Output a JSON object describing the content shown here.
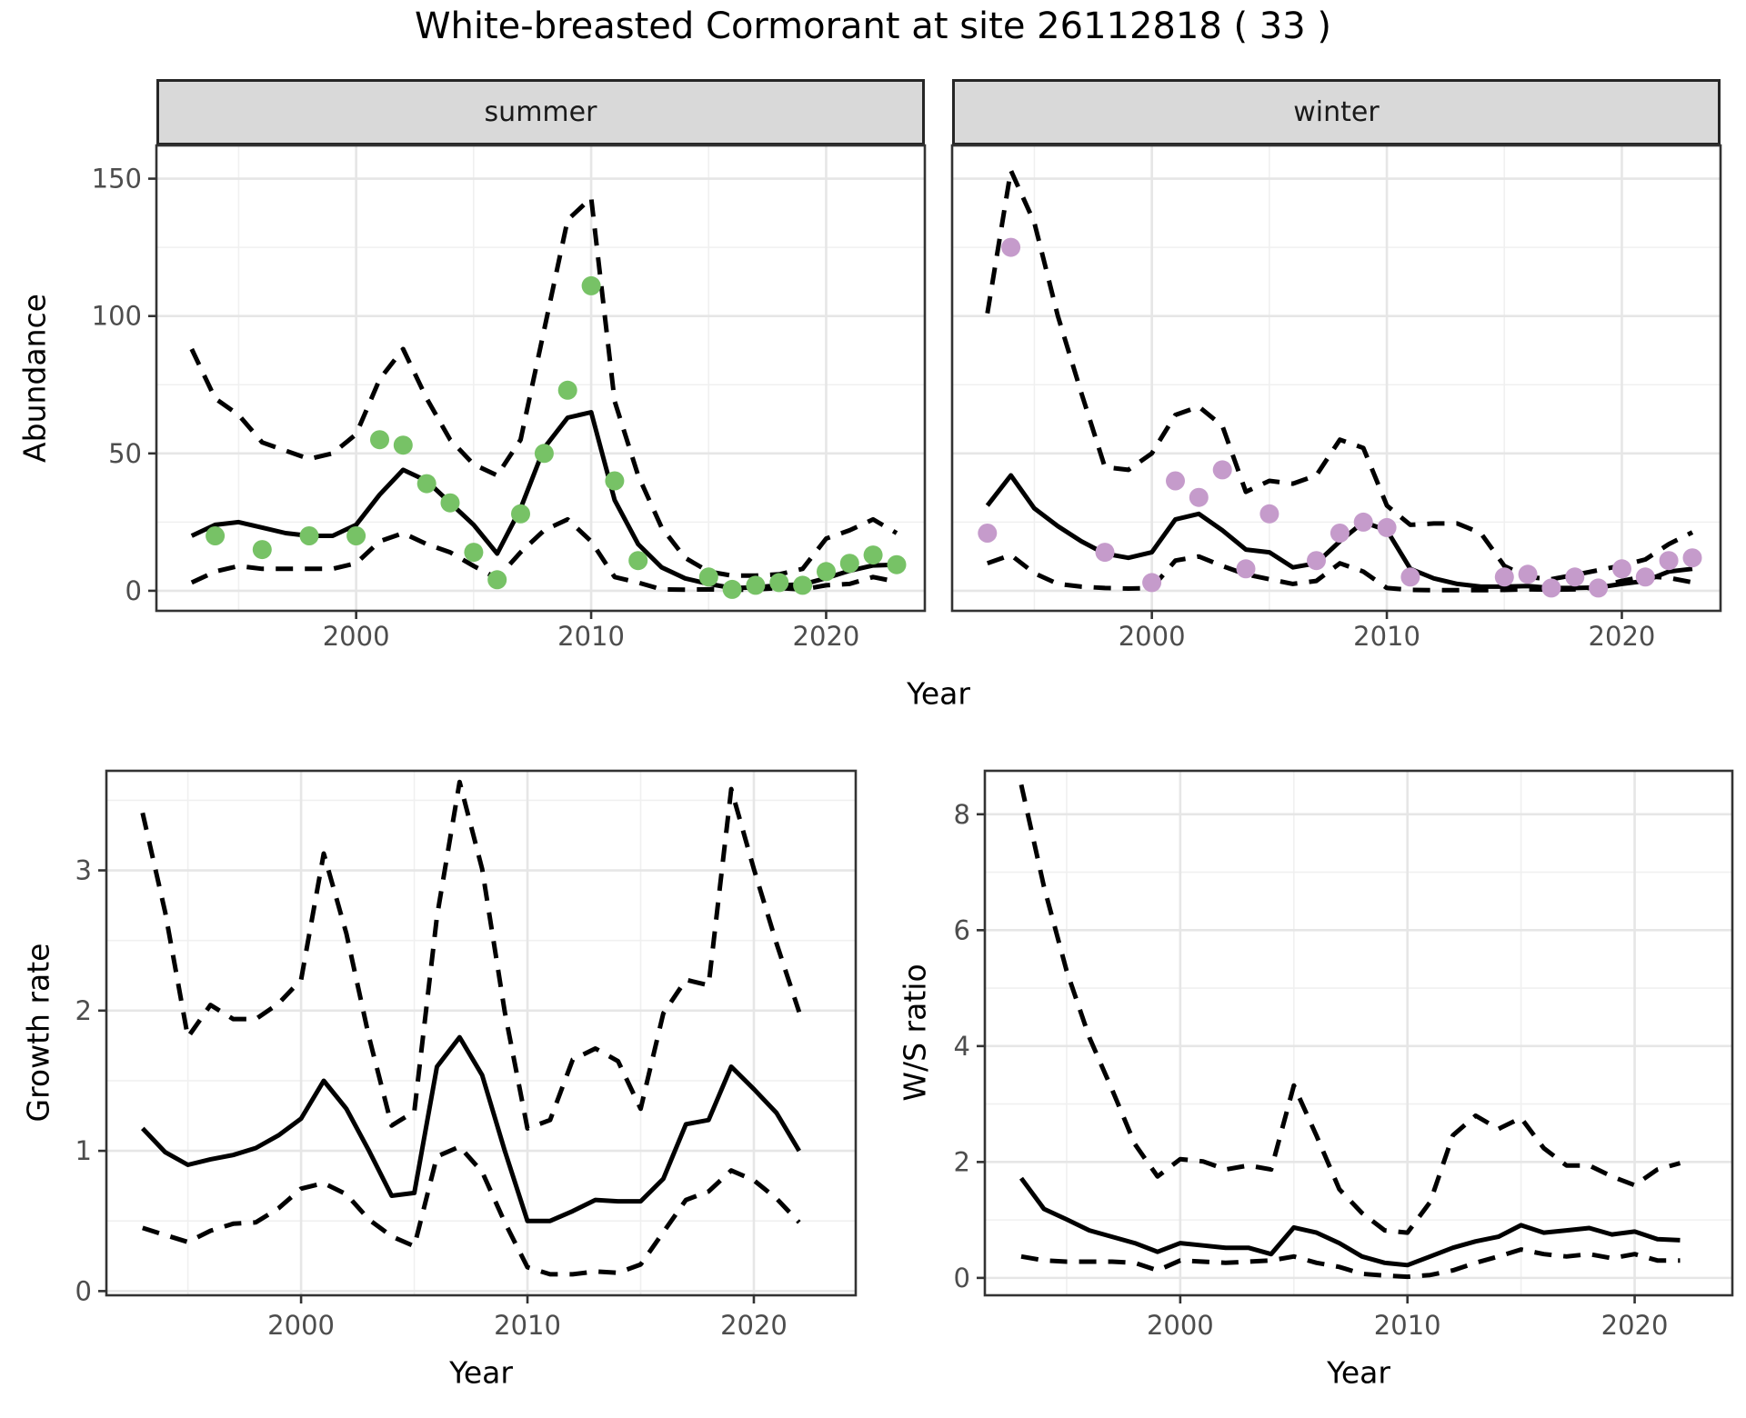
{
  "title": "White-breasted Cormorant at site 26112818 ( 33 )",
  "chart_data": [
    {
      "id": "abundance-summer",
      "type": "line",
      "facet": "summer",
      "ylabel": "Abundance",
      "xlabel": "Year",
      "xlim": [
        1991.5,
        2024.2
      ],
      "ylim": [
        -7.3,
        162.1
      ],
      "xticks": [
        2000,
        2010,
        2020
      ],
      "yticks": [
        0,
        50,
        100,
        150
      ],
      "grid": true,
      "legend": "none",
      "years": [
        1993,
        1994,
        1995,
        1996,
        1997,
        1998,
        1999,
        2000,
        2001,
        2002,
        2003,
        2004,
        2005,
        2006,
        2007,
        2008,
        2009,
        2010,
        2011,
        2012,
        2013,
        2014,
        2015,
        2016,
        2017,
        2018,
        2019,
        2020,
        2021,
        2022,
        2023
      ],
      "series": [
        {
          "name": "mean",
          "style": "solid",
          "y": [
            20,
            24,
            25,
            23,
            21,
            20,
            20,
            24,
            35,
            44,
            40,
            32,
            24,
            13.5,
            30,
            52,
            63,
            65,
            33,
            17,
            8.5,
            4.5,
            2.5,
            1,
            1.2,
            2,
            2.3,
            4.6,
            7.3,
            9.2,
            9.5
          ]
        },
        {
          "name": "upper_ci",
          "style": "dashed",
          "y": [
            88,
            70,
            64,
            54,
            51,
            48,
            50,
            57,
            77,
            88,
            70,
            55,
            46,
            42,
            55,
            95,
            135,
            143,
            69,
            42,
            23,
            12,
            7,
            5.5,
            5.5,
            6,
            8,
            19,
            22,
            26,
            21
          ]
        },
        {
          "name": "lower_ci",
          "style": "dashed",
          "y": [
            3,
            7,
            9,
            8,
            8,
            8,
            8,
            10,
            18,
            21,
            17,
            14,
            9,
            4.5,
            14,
            22,
            26,
            18,
            5,
            3,
            0.5,
            0.4,
            0.5,
            0.3,
            0.5,
            1,
            0.5,
            2,
            2.5,
            5,
            3.3
          ]
        }
      ],
      "points": {
        "name": "observed-counts",
        "color": "#77C266",
        "x": [
          1994,
          1996,
          1998,
          2000,
          2001,
          2002,
          2003,
          2004,
          2005,
          2006,
          2007,
          2008,
          2009,
          2010,
          2011,
          2012,
          2015,
          2016,
          2017,
          2018,
          2019,
          2020,
          2021,
          2022,
          2023
        ],
        "y": [
          20,
          15,
          20,
          20,
          55,
          53,
          39,
          32,
          14,
          4,
          28,
          50,
          73,
          111,
          40,
          11,
          5,
          0.5,
          2,
          3,
          2,
          7,
          10,
          13,
          9.5
        ]
      }
    },
    {
      "id": "abundance-winter",
      "type": "line",
      "facet": "winter",
      "ylabel": "Abundance",
      "xlabel": "Year",
      "xlim": [
        1991.5,
        2024.2
      ],
      "ylim": [
        -7.3,
        162.1
      ],
      "xticks": [
        2000,
        2010,
        2020
      ],
      "yticks": [
        0,
        50,
        100,
        150
      ],
      "grid": true,
      "legend": "none",
      "years": [
        1993,
        1994,
        1995,
        1996,
        1997,
        1998,
        1999,
        2000,
        2001,
        2002,
        2003,
        2004,
        2005,
        2006,
        2007,
        2008,
        2009,
        2010,
        2011,
        2012,
        2013,
        2014,
        2015,
        2016,
        2017,
        2018,
        2019,
        2020,
        2021,
        2022,
        2023
      ],
      "series": [
        {
          "name": "mean",
          "style": "solid",
          "y": [
            31,
            42,
            30,
            23.5,
            18,
            13.5,
            12,
            14,
            26,
            28,
            22,
            15,
            14,
            8.5,
            10,
            18,
            25,
            22,
            8,
            4.5,
            2.5,
            1.5,
            1.5,
            1.7,
            1,
            1,
            1.2,
            2.5,
            3.6,
            7,
            8
          ]
        },
        {
          "name": "upper_ci",
          "style": "dashed",
          "y": [
            101,
            153,
            134,
            100,
            72,
            45,
            44,
            50,
            64,
            67,
            60,
            36,
            40,
            39,
            42,
            55,
            52,
            31,
            24,
            24.5,
            24.5,
            21,
            9,
            5,
            4.2,
            5.8,
            7.5,
            9.2,
            11.4,
            17,
            21.3
          ]
        },
        {
          "name": "lower_ci",
          "style": "dashed",
          "y": [
            10,
            13,
            6.4,
            2.5,
            1.5,
            1,
            0.8,
            1,
            11,
            12.5,
            9,
            6,
            4.2,
            2.5,
            3.6,
            10,
            7,
            1,
            0.3,
            0.2,
            0.2,
            0.2,
            0.3,
            0.5,
            0.4,
            0.5,
            1.4,
            3.6,
            5.3,
            4.7,
            3.1
          ]
        }
      ],
      "points": {
        "name": "observed-counts",
        "color": "#C59BCB",
        "x": [
          1993,
          1994,
          1998,
          2000,
          2001,
          2002,
          2003,
          2004,
          2005,
          2007,
          2008,
          2009,
          2010,
          2011,
          2015,
          2016,
          2017,
          2018,
          2019,
          2020,
          2021,
          2022,
          2023
        ],
        "y": [
          21,
          125,
          14,
          3,
          40,
          34,
          44,
          8,
          28,
          11,
          21,
          25,
          23,
          5,
          5,
          6,
          1,
          5,
          1,
          8,
          5,
          11,
          12
        ]
      }
    },
    {
      "id": "growth-rate",
      "type": "line",
      "facet": "",
      "ylabel": "Growth rate",
      "xlabel": "Year",
      "xlim": [
        1991.4,
        2024.5
      ],
      "ylim": [
        -0.03,
        3.71
      ],
      "xticks": [
        2000,
        2010,
        2020
      ],
      "yticks": [
        0,
        1,
        2,
        3
      ],
      "grid": true,
      "legend": "none",
      "years": [
        1993,
        1994,
        1995,
        1996,
        1997,
        1998,
        1999,
        2000,
        2001,
        2002,
        2003,
        2004,
        2005,
        2006,
        2007,
        2008,
        2009,
        2010,
        2011,
        2012,
        2013,
        2014,
        2015,
        2016,
        2017,
        2018,
        2019,
        2020,
        2021,
        2022
      ],
      "series": [
        {
          "name": "mean",
          "style": "solid",
          "y": [
            1.16,
            0.99,
            0.9,
            0.94,
            0.97,
            1.02,
            1.11,
            1.23,
            1.5,
            1.3,
            1.0,
            0.68,
            0.7,
            1.6,
            1.81,
            1.54,
            1.0,
            0.5,
            0.5,
            0.57,
            0.65,
            0.64,
            0.64,
            0.8,
            1.19,
            1.22,
            1.6,
            1.44,
            1.27,
            1.0
          ]
        },
        {
          "name": "upper_ci",
          "style": "dashed",
          "y": [
            3.41,
            2.7,
            1.81,
            2.04,
            1.94,
            1.94,
            2.05,
            2.22,
            3.12,
            2.55,
            1.81,
            1.18,
            1.28,
            2.67,
            3.63,
            3.01,
            1.99,
            1.16,
            1.22,
            1.65,
            1.73,
            1.64,
            1.3,
            1.98,
            2.22,
            2.18,
            3.58,
            3.01,
            2.48,
            1.99
          ]
        },
        {
          "name": "lower_ci",
          "style": "dashed",
          "y": [
            0.45,
            0.4,
            0.35,
            0.43,
            0.48,
            0.49,
            0.59,
            0.73,
            0.77,
            0.69,
            0.51,
            0.39,
            0.32,
            0.96,
            1.03,
            0.85,
            0.49,
            0.17,
            0.12,
            0.12,
            0.14,
            0.13,
            0.19,
            0.42,
            0.65,
            0.71,
            0.86,
            0.79,
            0.66,
            0.49
          ]
        }
      ]
    },
    {
      "id": "ws-ratio",
      "type": "line",
      "facet": "",
      "ylabel": "W/S ratio",
      "xlabel": "Year",
      "xlim": [
        1991.4,
        2024.3
      ],
      "ylim": [
        -0.3,
        8.75
      ],
      "xticks": [
        2000,
        2010,
        2020
      ],
      "yticks": [
        0,
        2,
        4,
        6,
        8
      ],
      "grid": true,
      "legend": "none",
      "years": [
        1993,
        1994,
        1995,
        1996,
        1997,
        1998,
        1999,
        2000,
        2001,
        2002,
        2003,
        2004,
        2005,
        2006,
        2007,
        2008,
        2009,
        2010,
        2011,
        2012,
        2013,
        2014,
        2015,
        2016,
        2017,
        2018,
        2019,
        2020,
        2021,
        2022
      ],
      "series": [
        {
          "name": "mean",
          "style": "solid",
          "y": [
            1.72,
            1.19,
            1.01,
            0.82,
            0.71,
            0.6,
            0.45,
            0.6,
            0.56,
            0.52,
            0.52,
            0.41,
            0.87,
            0.78,
            0.6,
            0.37,
            0.26,
            0.22,
            0.37,
            0.52,
            0.63,
            0.71,
            0.91,
            0.78,
            0.82,
            0.86,
            0.75,
            0.8,
            0.67,
            0.65
          ]
        },
        {
          "name": "upper_ci",
          "style": "dashed",
          "y": [
            8.51,
            6.75,
            5.3,
            4.15,
            3.25,
            2.31,
            1.75,
            2.05,
            2.01,
            1.87,
            1.94,
            1.87,
            3.32,
            2.45,
            1.53,
            1.12,
            0.82,
            0.78,
            1.31,
            2.46,
            2.8,
            2.57,
            2.76,
            2.24,
            1.94,
            1.94,
            1.75,
            1.6,
            1.87,
            1.98
          ]
        },
        {
          "name": "lower_ci",
          "style": "dashed",
          "y": [
            0.37,
            0.3,
            0.28,
            0.28,
            0.28,
            0.26,
            0.13,
            0.3,
            0.28,
            0.26,
            0.28,
            0.3,
            0.37,
            0.26,
            0.19,
            0.07,
            0.04,
            0.02,
            0.05,
            0.13,
            0.26,
            0.37,
            0.49,
            0.41,
            0.37,
            0.41,
            0.34,
            0.41,
            0.3,
            0.3
          ]
        }
      ]
    }
  ],
  "theme": {
    "grid_major_color": "#e6e6e6",
    "grid_minor_color": "#f0f0f0",
    "panel_border_color": "#333333",
    "strip_fill": "#d9d9d9",
    "strip_border": "#262626",
    "axis_text_color": "#4d4d4d",
    "line_color": "#000000"
  }
}
